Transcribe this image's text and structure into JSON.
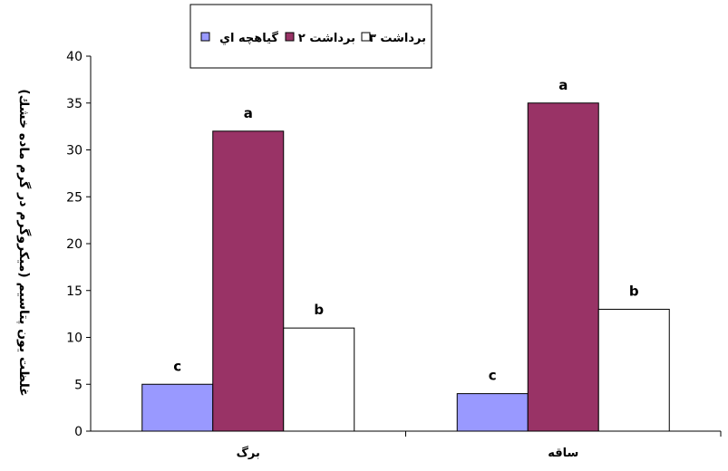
{
  "chart_data": {
    "type": "bar",
    "categories": [
      "برگ",
      "ساقه"
    ],
    "series": [
      {
        "name": "گياهچه اي",
        "color": "#9999ff",
        "values": [
          5,
          4
        ],
        "labels": [
          "c",
          "c"
        ]
      },
      {
        "name": "برداشت ۲",
        "color": "#993366",
        "values": [
          32,
          35
        ],
        "labels": [
          "a",
          "a"
        ]
      },
      {
        "name": "برداشت ۳",
        "color": "#ffffff",
        "values": [
          11,
          13
        ],
        "labels": [
          "b",
          "b"
        ]
      }
    ],
    "ylabel": "غلظت يون پتاسيم (ميكروگرم در گرم ماده خشك)",
    "xlabel": "",
    "ylim": [
      0,
      40
    ],
    "yticks": [
      0,
      5,
      10,
      15,
      20,
      25,
      30,
      35,
      40
    ],
    "grid": false,
    "legend_position": "top"
  }
}
